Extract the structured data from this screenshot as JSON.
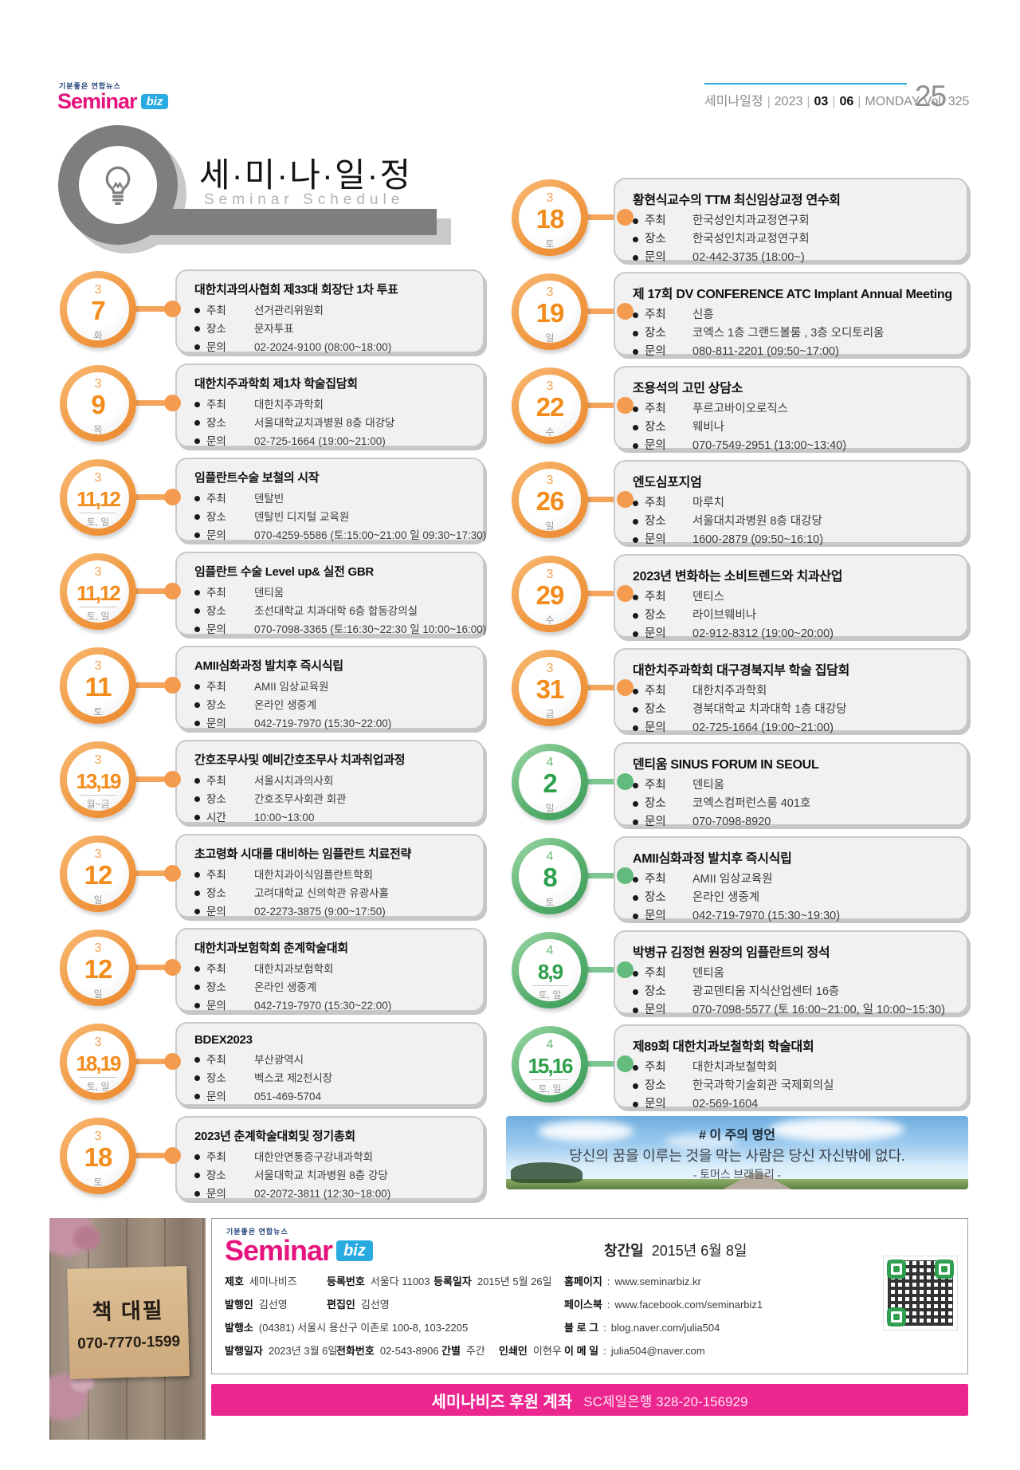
{
  "header": {
    "logo": {
      "tagline": "기분좋은 연합뉴스",
      "brand": "Seminar",
      "badge": "biz"
    },
    "meta": {
      "section": "세미나일정",
      "sep": "|",
      "year": "2023",
      "month": "03",
      "day": "06",
      "tail": "MONDAY  Vol. 325"
    },
    "page_number": "25"
  },
  "masthead": {
    "title_korean": "세·미·나·일·정",
    "title_english": "Seminar Schedule"
  },
  "schedule": {
    "left": [
      {
        "month": "3",
        "day": "7",
        "weekday": "화",
        "color": "orange",
        "title": "대한치과의사협회 제33대 회장단  1차 투표",
        "rows": [
          {
            "label": "주최",
            "value": "선거관리위원회"
          },
          {
            "label": "장소",
            "value": "문자투표"
          },
          {
            "label": "문의",
            "value": "02-2024-9100 (08:00~18:00)"
          }
        ]
      },
      {
        "month": "3",
        "day": "9",
        "weekday": "목",
        "color": "orange",
        "title": "대한치주과학회 제1차 학술집담회",
        "rows": [
          {
            "label": "주최",
            "value": "대한치주과학회"
          },
          {
            "label": "장소",
            "value": "서울대학교치과병원 8층 대강당"
          },
          {
            "label": "문의",
            "value": "02-725-1664 (19:00~21:00)"
          }
        ]
      },
      {
        "month": "3",
        "day": "11,12",
        "weekday": "토, 일",
        "color": "orange",
        "title": "임플란트수술 보철의 시작",
        "rows": [
          {
            "label": "주최",
            "value": "덴탈빈"
          },
          {
            "label": "장소",
            "value": "덴탈빈 디지털 교육원"
          },
          {
            "label": "문의",
            "value": "070-4259-5586 (토:15:00~21:00  일 09:30~17:30)"
          }
        ]
      },
      {
        "month": "3",
        "day": "11,12",
        "weekday": "토, 일",
        "color": "orange",
        "title": "임플란트 수술 Level up& 실전 GBR",
        "rows": [
          {
            "label": "주최",
            "value": "덴티움"
          },
          {
            "label": "장소",
            "value": "조선대학교 치과대학 6층 합동강의실"
          },
          {
            "label": "문의",
            "value": "070-7098-3365 (토:16:30~22:30  일 10:00~16:00)"
          }
        ]
      },
      {
        "month": "3",
        "day": "11",
        "weekday": "토",
        "color": "orange",
        "title": "AMII심화과정 발치후 즉시식립",
        "rows": [
          {
            "label": "주최",
            "value": "AMII 임상교육원"
          },
          {
            "label": "장소",
            "value": "온라인 생중계"
          },
          {
            "label": "문의",
            "value": "042-719-7970 (15:30~22:00)"
          }
        ]
      },
      {
        "month": "3",
        "day": "13,19",
        "weekday": "월~금",
        "color": "orange",
        "title": "간호조무사및 예비간호조무사 치과취업과정",
        "rows": [
          {
            "label": "주최",
            "value": "서울시치과의사회"
          },
          {
            "label": "장소",
            "value": "간호조무사회관 회관"
          },
          {
            "label": "시간",
            "value": "10:00~13:00"
          }
        ]
      },
      {
        "month": "3",
        "day": "12",
        "weekday": "일",
        "color": "orange",
        "title": "초고령화 시대를 대비하는 임플란트 치료전략",
        "rows": [
          {
            "label": "주최",
            "value": "대한치과이식임플란트학회"
          },
          {
            "label": "장소",
            "value": "고려대학교 신의학관 유광사홀"
          },
          {
            "label": "문의",
            "value": "02-2273-3875 (9:00~17:50)"
          }
        ]
      },
      {
        "month": "3",
        "day": "12",
        "weekday": "일",
        "color": "orange",
        "title": "대한치과보험학회 춘계학술대회",
        "rows": [
          {
            "label": "주최",
            "value": "대한치과보험학회"
          },
          {
            "label": "장소",
            "value": "온라인 생중계"
          },
          {
            "label": "문의",
            "value": "042-719-7970 (15:30~22:00)"
          }
        ]
      },
      {
        "month": "3",
        "day": "18,19",
        "weekday": "토, 일",
        "color": "orange",
        "title": "BDEX2023",
        "rows": [
          {
            "label": "주최",
            "value": "부산광역시"
          },
          {
            "label": "장소",
            "value": "벡스코 제2전시장"
          },
          {
            "label": "문의",
            "value": "051-469-5704"
          }
        ]
      },
      {
        "month": "3",
        "day": "18",
        "weekday": "토",
        "color": "orange",
        "title": "2023년 춘계학술대회및 정기총회",
        "rows": [
          {
            "label": "주최",
            "value": "대한안면통증구강내과학회"
          },
          {
            "label": "장소",
            "value": "서울대학교 치과병원 8층 강당"
          },
          {
            "label": "문의",
            "value": "02-2072-3811 (12:30~18:00)"
          }
        ]
      }
    ],
    "right": [
      {
        "month": "3",
        "day": "18",
        "weekday": "토",
        "color": "orange",
        "title": "황현식교수의 TTM 최신임상교정 연수회",
        "rows": [
          {
            "label": "주최",
            "value": "한국성인치과교정연구회"
          },
          {
            "label": "장소",
            "value": "한국성인치과교정연구회"
          },
          {
            "label": "문의",
            "value": "02-442-3735 (18:00~)"
          }
        ]
      },
      {
        "month": "3",
        "day": "19",
        "weekday": "일",
        "color": "orange",
        "title": "제 17회 DV CONFERENCE ATC Implant Annual Meeting",
        "rows": [
          {
            "label": "주최",
            "value": "신흥"
          },
          {
            "label": "장소",
            "value": "코엑스 1층 그랜드볼룸 , 3층  오디토리움"
          },
          {
            "label": "문의",
            "value": "080-811-2201 (09:50~17:00)"
          }
        ]
      },
      {
        "month": "3",
        "day": "22",
        "weekday": "수",
        "color": "orange",
        "title": "조용석의 고민 상담소",
        "rows": [
          {
            "label": "주최",
            "value": "푸르고바이오로직스"
          },
          {
            "label": "장소",
            "value": "웨비나"
          },
          {
            "label": "문의",
            "value": "070-7549-2951 (13:00~13:40)"
          }
        ]
      },
      {
        "month": "3",
        "day": "26",
        "weekday": "일",
        "color": "orange",
        "title": "엔도심포지엄",
        "rows": [
          {
            "label": "주최",
            "value": "마루치"
          },
          {
            "label": "장소",
            "value": "서울대치과병원 8층 대강당"
          },
          {
            "label": "문의",
            "value": "1600-2879 (09:50~16:10)"
          }
        ]
      },
      {
        "month": "3",
        "day": "29",
        "weekday": "수",
        "color": "orange",
        "title": "2023년 변화하는 소비트렌드와 치과산업",
        "rows": [
          {
            "label": "주최",
            "value": "덴티스"
          },
          {
            "label": "장소",
            "value": "라이브웨비나"
          },
          {
            "label": "문의",
            "value": "02-912-8312 (19:00~20:00)"
          }
        ]
      },
      {
        "month": "3",
        "day": "31",
        "weekday": "금",
        "color": "orange",
        "title": "대한치주과학회 대구경북지부 학술 집담회",
        "rows": [
          {
            "label": "주최",
            "value": "대한치주과학회"
          },
          {
            "label": "장소",
            "value": "경북대학교 치과대학 1층 대강당"
          },
          {
            "label": "문의",
            "value": "02-725-1664 (19:00~21:00)"
          }
        ]
      },
      {
        "month": "4",
        "day": "2",
        "weekday": "일",
        "color": "green",
        "title": "덴티움 SINUS FORUM IN SEOUL",
        "rows": [
          {
            "label": "주최",
            "value": "덴티움"
          },
          {
            "label": "장소",
            "value": "코엑스컴퍼런스룸 401호"
          },
          {
            "label": "문의",
            "value": "070-7098-8920"
          }
        ]
      },
      {
        "month": "4",
        "day": "8",
        "weekday": "토",
        "color": "green",
        "title": "AMII심화과정 발치후 즉시식립",
        "rows": [
          {
            "label": "주최",
            "value": "AMII 임상교육원"
          },
          {
            "label": "장소",
            "value": "온라인 생중계"
          },
          {
            "label": "문의",
            "value": "042-719-7970 (15:30~19:30)"
          }
        ]
      },
      {
        "month": "4",
        "day": "8,9",
        "weekday": "토, 일",
        "color": "green",
        "title": "박병규 김정현 원장의 임플란트의 정석",
        "rows": [
          {
            "label": "주최",
            "value": "덴티움"
          },
          {
            "label": "장소",
            "value": "광교덴티움 지식산업센터 16층"
          },
          {
            "label": "문의",
            "value": "070-7098-5577 (토 16:00~21:00, 일 10:00~15:30)"
          }
        ]
      },
      {
        "month": "4",
        "day": "15,16",
        "weekday": "토, 일",
        "color": "green",
        "title": "제89회 대한치과보철학회 학술대회",
        "rows": [
          {
            "label": "주최",
            "value": "대한치과보철학회"
          },
          {
            "label": "장소",
            "value": "한국과학기술회관 국제회의실"
          },
          {
            "label": "문의",
            "value": "02-569-1604"
          }
        ]
      }
    ]
  },
  "quote": {
    "tag": "# 이 주의 명언",
    "text": "당신의 꿈을 이루는 것을 막는 사람은 당신 자신밖에 없다.",
    "author": "- 토머스 브래들리 -"
  },
  "ad": {
    "title": "책 대필",
    "phone": "070-7770-1599"
  },
  "footer": {
    "logo": {
      "tagline": "기분좋은 연합뉴스",
      "brand": "Seminar",
      "badge": "biz"
    },
    "founded_label": "창간일",
    "founded_value": "2015년 6월 8일",
    "info_rows": [
      {
        "cells": [
          {
            "label": "제호",
            "value": "세미나비즈"
          },
          {
            "label": "등록번호",
            "value": "서울다 11003"
          },
          {
            "label": "등록일자",
            "value": "2015년 5월 26일"
          }
        ]
      },
      {
        "cells": [
          {
            "label": "발행인",
            "value": "김선영"
          },
          {
            "label": "편집인",
            "value": "김선영"
          }
        ]
      },
      {
        "cells": [
          {
            "label": "발행소",
            "value": "(04381) 서울시 용산구 이촌로 100-8, 103-2205"
          }
        ]
      },
      {
        "cells": [
          {
            "label": "발행일자",
            "value": "2023년 3월 6일"
          },
          {
            "label": "전화번호",
            "value": "02-543-8906"
          },
          {
            "label": "간별",
            "value": "주간"
          },
          {
            "label": "인쇄인",
            "value": "이현우"
          }
        ]
      }
    ],
    "link_sep": ":",
    "links": [
      {
        "label": "홈페이지",
        "value": "www.seminarbiz.kr"
      },
      {
        "label": "페이스북",
        "value": "www.facebook.com/seminarbiz1"
      },
      {
        "label": "블 로 그",
        "value": "blog.naver.com/julia504"
      },
      {
        "label": "이 메 일",
        "value": "julia504@naver.com"
      }
    ],
    "bank_label": "세미나비즈 후원 계좌",
    "bank_value": "SC제일은행 328-20-156929"
  }
}
